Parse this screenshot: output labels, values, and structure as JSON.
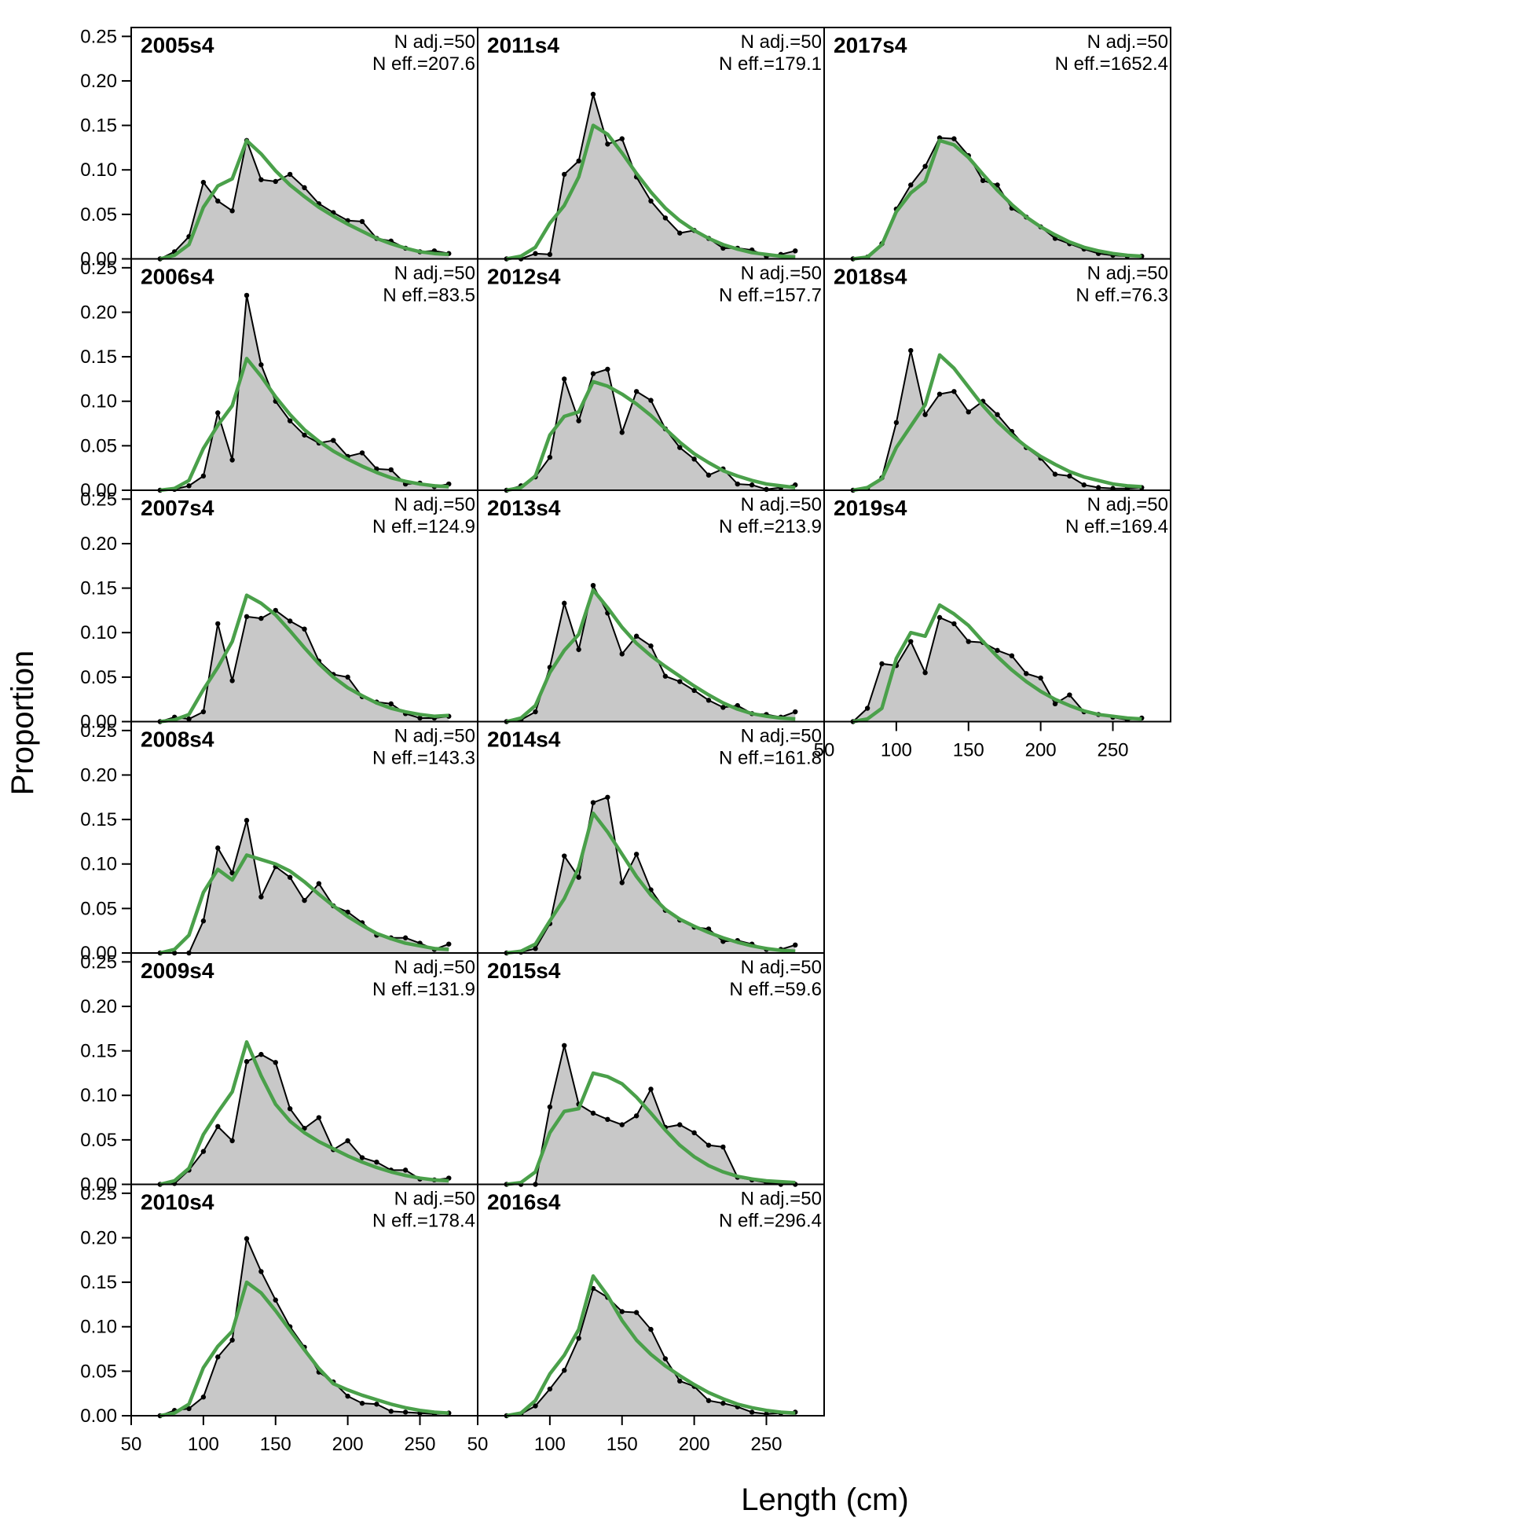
{
  "chart_data": {
    "type": "area",
    "xlabel": "Length (cm)",
    "ylabel": "Proportion",
    "xlim": [
      50,
      290
    ],
    "ylim": [
      0,
      0.26
    ],
    "x_ticks": [
      "50",
      "100",
      "150",
      "200",
      "250"
    ],
    "y_ticks": [
      "0.00",
      "0.05",
      "0.10",
      "0.15",
      "0.20",
      "0.25"
    ],
    "x": [
      70,
      80,
      90,
      100,
      110,
      120,
      130,
      140,
      150,
      160,
      170,
      180,
      190,
      200,
      210,
      220,
      230,
      240,
      250,
      260,
      270
    ],
    "legend": {
      "observed": "Observed (grey fill with black points)",
      "expected": "Expected (green line)"
    },
    "colors": {
      "observed_fill": "#c8c8c8",
      "observed_line": "#000000",
      "expected_line": "#4aa04a",
      "zero_line": "#b0b0b0",
      "frame": "#000000"
    },
    "panels": [
      {
        "title": "2005s4",
        "n_adj": "N adj.=50",
        "n_eff": "N eff.=207.6",
        "observed": [
          0.0,
          0.008,
          0.025,
          0.086,
          0.065,
          0.054,
          0.133,
          0.089,
          0.087,
          0.095,
          0.08,
          0.062,
          0.052,
          0.043,
          0.042,
          0.023,
          0.02,
          0.012,
          0.008,
          0.009,
          0.006
        ],
        "expected": [
          0.0,
          0.004,
          0.016,
          0.058,
          0.082,
          0.09,
          0.133,
          0.118,
          0.099,
          0.083,
          0.07,
          0.058,
          0.048,
          0.039,
          0.031,
          0.023,
          0.017,
          0.012,
          0.008,
          0.006,
          0.005
        ]
      },
      {
        "title": "2006s4",
        "n_adj": "N adj.=50",
        "n_eff": "N eff.=83.5",
        "observed": [
          0.0,
          0.001,
          0.005,
          0.016,
          0.087,
          0.034,
          0.219,
          0.141,
          0.1,
          0.078,
          0.062,
          0.053,
          0.056,
          0.038,
          0.042,
          0.024,
          0.023,
          0.007,
          0.008,
          0.004,
          0.007
        ],
        "expected": [
          0.0,
          0.002,
          0.011,
          0.047,
          0.073,
          0.095,
          0.148,
          0.128,
          0.105,
          0.085,
          0.068,
          0.055,
          0.044,
          0.035,
          0.027,
          0.02,
          0.014,
          0.01,
          0.007,
          0.005,
          0.004
        ]
      },
      {
        "title": "2007s4",
        "n_adj": "N adj.=50",
        "n_eff": "N eff.=124.9",
        "observed": [
          0.0,
          0.005,
          0.003,
          0.011,
          0.11,
          0.046,
          0.118,
          0.116,
          0.125,
          0.113,
          0.104,
          0.068,
          0.053,
          0.05,
          0.028,
          0.022,
          0.02,
          0.009,
          0.004,
          0.004,
          0.006
        ],
        "expected": [
          0.0,
          0.002,
          0.008,
          0.036,
          0.061,
          0.09,
          0.142,
          0.133,
          0.12,
          0.102,
          0.083,
          0.065,
          0.05,
          0.038,
          0.029,
          0.021,
          0.015,
          0.011,
          0.008,
          0.006,
          0.007
        ]
      },
      {
        "title": "2008s4",
        "n_adj": "N adj.=50",
        "n_eff": "N eff.=143.3",
        "observed": [
          0.0,
          0.0,
          0.0,
          0.036,
          0.118,
          0.09,
          0.149,
          0.063,
          0.097,
          0.085,
          0.059,
          0.078,
          0.053,
          0.046,
          0.034,
          0.02,
          0.017,
          0.017,
          0.011,
          0.004,
          0.01
        ],
        "expected": [
          0.0,
          0.004,
          0.02,
          0.068,
          0.094,
          0.082,
          0.11,
          0.105,
          0.1,
          0.092,
          0.08,
          0.066,
          0.053,
          0.041,
          0.031,
          0.022,
          0.016,
          0.011,
          0.008,
          0.005,
          0.004
        ]
      },
      {
        "title": "2009s4",
        "n_adj": "N adj.=50",
        "n_eff": "N eff.=131.9",
        "observed": [
          0.0,
          0.001,
          0.016,
          0.037,
          0.065,
          0.049,
          0.138,
          0.146,
          0.137,
          0.085,
          0.063,
          0.075,
          0.039,
          0.049,
          0.03,
          0.025,
          0.016,
          0.016,
          0.006,
          0.005,
          0.007
        ],
        "expected": [
          0.0,
          0.004,
          0.018,
          0.056,
          0.081,
          0.104,
          0.16,
          0.122,
          0.09,
          0.071,
          0.058,
          0.048,
          0.04,
          0.032,
          0.025,
          0.019,
          0.014,
          0.01,
          0.007,
          0.005,
          0.004
        ]
      },
      {
        "title": "2010s4",
        "n_adj": "N adj.=50",
        "n_eff": "N eff.=178.4",
        "observed": [
          0.0,
          0.006,
          0.008,
          0.021,
          0.066,
          0.085,
          0.199,
          0.162,
          0.13,
          0.1,
          0.077,
          0.049,
          0.038,
          0.022,
          0.014,
          0.013,
          0.005,
          0.004,
          0.003,
          0.002,
          0.003
        ],
        "expected": [
          0.0,
          0.003,
          0.013,
          0.054,
          0.078,
          0.095,
          0.15,
          0.138,
          0.118,
          0.096,
          0.074,
          0.053,
          0.036,
          0.029,
          0.023,
          0.018,
          0.013,
          0.009,
          0.006,
          0.004,
          0.003
        ]
      },
      {
        "title": "2011s4",
        "n_adj": "N adj.=50",
        "n_eff": "N eff.=179.1",
        "observed": [
          0.0,
          0.0,
          0.006,
          0.005,
          0.095,
          0.11,
          0.185,
          0.129,
          0.135,
          0.092,
          0.065,
          0.046,
          0.029,
          0.032,
          0.023,
          0.012,
          0.012,
          0.01,
          0.003,
          0.005,
          0.009
        ],
        "expected": [
          0.0,
          0.003,
          0.013,
          0.04,
          0.06,
          0.092,
          0.15,
          0.14,
          0.119,
          0.096,
          0.075,
          0.057,
          0.043,
          0.032,
          0.023,
          0.016,
          0.011,
          0.007,
          0.005,
          0.003,
          0.002
        ]
      },
      {
        "title": "2012s4",
        "n_adj": "N adj.=50",
        "n_eff": "N eff.=157.7",
        "observed": [
          0.0,
          0.005,
          0.015,
          0.037,
          0.125,
          0.078,
          0.131,
          0.136,
          0.065,
          0.111,
          0.101,
          0.069,
          0.048,
          0.035,
          0.017,
          0.024,
          0.007,
          0.006,
          0.001,
          0.003,
          0.006
        ],
        "expected": [
          0.0,
          0.003,
          0.016,
          0.062,
          0.083,
          0.088,
          0.122,
          0.117,
          0.108,
          0.097,
          0.084,
          0.069,
          0.054,
          0.041,
          0.031,
          0.022,
          0.016,
          0.011,
          0.007,
          0.005,
          0.003
        ]
      },
      {
        "title": "2013s4",
        "n_adj": "N adj.=50",
        "n_eff": "N eff.=213.9",
        "observed": [
          0.0,
          0.002,
          0.011,
          0.061,
          0.133,
          0.081,
          0.153,
          0.122,
          0.076,
          0.096,
          0.085,
          0.051,
          0.045,
          0.035,
          0.024,
          0.016,
          0.018,
          0.009,
          0.008,
          0.005,
          0.011
        ],
        "expected": [
          0.0,
          0.004,
          0.018,
          0.055,
          0.08,
          0.098,
          0.148,
          0.128,
          0.106,
          0.088,
          0.074,
          0.062,
          0.051,
          0.04,
          0.03,
          0.021,
          0.014,
          0.009,
          0.006,
          0.004,
          0.003
        ]
      },
      {
        "title": "2014s4",
        "n_adj": "N adj.=50",
        "n_eff": "N eff.=161.8",
        "observed": [
          0.0,
          0.001,
          0.005,
          0.033,
          0.109,
          0.085,
          0.169,
          0.175,
          0.079,
          0.111,
          0.071,
          0.048,
          0.037,
          0.029,
          0.027,
          0.013,
          0.014,
          0.01,
          0.004,
          0.004,
          0.009
        ],
        "expected": [
          0.0,
          0.002,
          0.01,
          0.036,
          0.061,
          0.096,
          0.157,
          0.136,
          0.111,
          0.086,
          0.065,
          0.049,
          0.038,
          0.03,
          0.023,
          0.017,
          0.012,
          0.008,
          0.005,
          0.003,
          0.002
        ]
      },
      {
        "title": "2015s4",
        "n_adj": "N adj.=50",
        "n_eff": "N eff.=59.6",
        "observed": [
          0.0,
          0.0,
          0.0,
          0.087,
          0.156,
          0.09,
          0.08,
          0.073,
          0.067,
          0.077,
          0.107,
          0.064,
          0.067,
          0.058,
          0.044,
          0.042,
          0.008,
          0.005,
          0.002,
          0.0,
          0.0
        ],
        "expected": [
          0.0,
          0.002,
          0.014,
          0.058,
          0.082,
          0.085,
          0.125,
          0.121,
          0.113,
          0.098,
          0.08,
          0.061,
          0.044,
          0.031,
          0.021,
          0.014,
          0.009,
          0.006,
          0.004,
          0.003,
          0.002
        ]
      },
      {
        "title": "2016s4",
        "n_adj": "N adj.=50",
        "n_eff": "N eff.=296.4",
        "observed": [
          0.0,
          0.002,
          0.011,
          0.03,
          0.051,
          0.087,
          0.143,
          0.133,
          0.117,
          0.116,
          0.097,
          0.064,
          0.039,
          0.033,
          0.017,
          0.014,
          0.01,
          0.004,
          0.002,
          0.003,
          0.004
        ],
        "expected": [
          0.0,
          0.003,
          0.017,
          0.047,
          0.068,
          0.097,
          0.157,
          0.135,
          0.107,
          0.085,
          0.069,
          0.056,
          0.045,
          0.035,
          0.026,
          0.019,
          0.013,
          0.009,
          0.006,
          0.004,
          0.003
        ]
      },
      {
        "title": "2017s4",
        "n_adj": "N adj.=50",
        "n_eff": "N eff.=1652.4",
        "observed": [
          0.0,
          0.002,
          0.017,
          0.056,
          0.083,
          0.104,
          0.136,
          0.135,
          0.116,
          0.088,
          0.083,
          0.057,
          0.047,
          0.036,
          0.023,
          0.017,
          0.011,
          0.006,
          0.004,
          0.003,
          0.003
        ],
        "expected": [
          0.0,
          0.002,
          0.016,
          0.053,
          0.074,
          0.087,
          0.133,
          0.128,
          0.114,
          0.095,
          0.077,
          0.061,
          0.047,
          0.036,
          0.027,
          0.019,
          0.013,
          0.009,
          0.006,
          0.004,
          0.003
        ]
      },
      {
        "title": "2018s4",
        "n_adj": "N adj.=50",
        "n_eff": "N eff.=76.3",
        "observed": [
          0.0,
          0.002,
          0.014,
          0.076,
          0.157,
          0.085,
          0.108,
          0.111,
          0.088,
          0.1,
          0.085,
          0.066,
          0.048,
          0.036,
          0.018,
          0.016,
          0.006,
          0.003,
          0.002,
          0.002,
          0.003
        ],
        "expected": [
          0.0,
          0.003,
          0.013,
          0.048,
          0.072,
          0.096,
          0.152,
          0.137,
          0.116,
          0.095,
          0.077,
          0.062,
          0.049,
          0.038,
          0.029,
          0.021,
          0.015,
          0.011,
          0.007,
          0.005,
          0.004
        ]
      },
      {
        "title": "2019s4",
        "n_adj": "N adj.=50",
        "n_eff": "N eff.=169.4",
        "observed": [
          0.0,
          0.015,
          0.065,
          0.063,
          0.09,
          0.055,
          0.117,
          0.11,
          0.09,
          0.089,
          0.08,
          0.074,
          0.054,
          0.049,
          0.02,
          0.03,
          0.011,
          0.008,
          0.005,
          0.002,
          0.004
        ],
        "expected": [
          0.0,
          0.003,
          0.015,
          0.071,
          0.1,
          0.096,
          0.131,
          0.121,
          0.108,
          0.09,
          0.073,
          0.058,
          0.045,
          0.034,
          0.025,
          0.018,
          0.012,
          0.008,
          0.006,
          0.004,
          0.003
        ]
      }
    ]
  }
}
